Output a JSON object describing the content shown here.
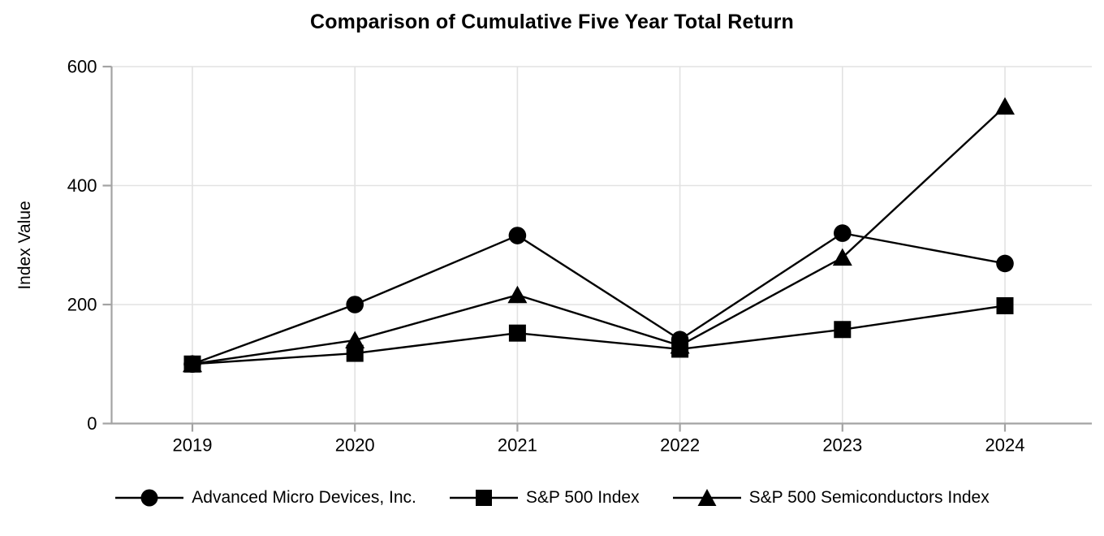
{
  "title": "Comparison of Cumulative Five Year Total Return",
  "chart_data": {
    "type": "line",
    "title": "Comparison of Cumulative Five Year Total Return",
    "xlabel": "",
    "ylabel": "Index Value",
    "x": [
      "2019",
      "2020",
      "2021",
      "2022",
      "2023",
      "2024"
    ],
    "ylim": [
      0,
      600
    ],
    "yticks": [
      0,
      200,
      400,
      600
    ],
    "grid": true,
    "legend_position": "bottom",
    "series": [
      {
        "name": "Advanced Micro Devices, Inc.",
        "marker": "circle",
        "values": [
          100,
          200,
          316,
          141,
          320,
          269
        ]
      },
      {
        "name": "S&P 500 Index",
        "marker": "square",
        "values": [
          100,
          118,
          152,
          125,
          158,
          198
        ]
      },
      {
        "name": "S&P 500 Semiconductors Index",
        "marker": "triangle",
        "values": [
          100,
          140,
          216,
          131,
          279,
          533
        ]
      }
    ],
    "colors": {
      "series": "#000000",
      "axis": "#a3a3a3",
      "grid": "#e2e2e2",
      "text": "#000000",
      "background": "#ffffff"
    }
  }
}
